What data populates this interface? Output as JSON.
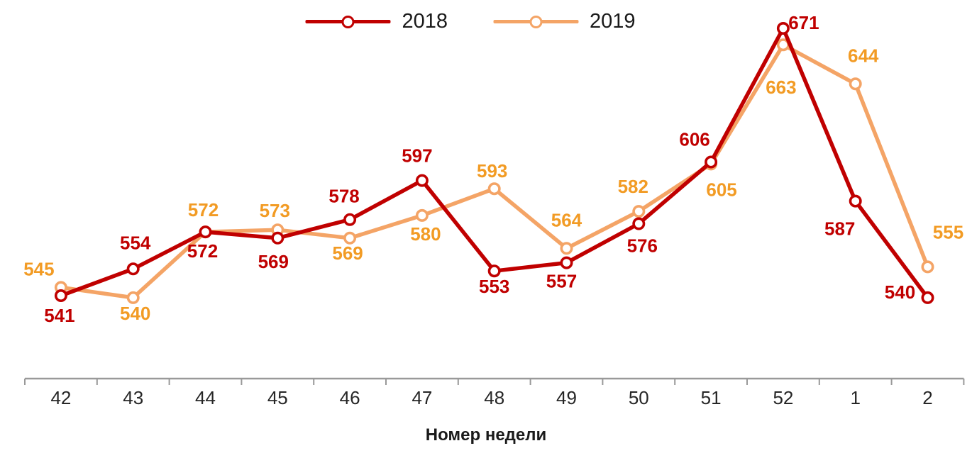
{
  "chart_data": {
    "type": "line",
    "title": "",
    "xlabel": "Номер недели",
    "categories": [
      "42",
      "43",
      "44",
      "45",
      "46",
      "47",
      "48",
      "49",
      "50",
      "51",
      "52",
      "1",
      "2"
    ],
    "series": [
      {
        "name": "2018",
        "color": "#C00000",
        "label_color": "#C00000",
        "values": [
          541,
          554,
          572,
          569,
          578,
          597,
          553,
          557,
          576,
          606,
          671,
          587,
          540
        ],
        "label_offsets": [
          [
            -2,
            28
          ],
          [
            3,
            -37
          ],
          [
            -4,
            27
          ],
          [
            -6,
            33
          ],
          [
            -8,
            -33
          ],
          [
            -7,
            -35
          ],
          [
            0,
            22
          ],
          [
            -7,
            26
          ],
          [
            5,
            31
          ],
          [
            -23,
            -32
          ],
          [
            29,
            -8
          ],
          [
            -22,
            39
          ],
          [
            -39,
            -8
          ]
        ]
      },
      {
        "name": "2019",
        "color": "#F4A466",
        "label_color": "#F29B24",
        "values": [
          545,
          540,
          572,
          573,
          569,
          580,
          593,
          564,
          582,
          605,
          663,
          644,
          555
        ],
        "label_offsets": [
          [
            -31,
            -26
          ],
          [
            3,
            22
          ],
          [
            -3,
            -31
          ],
          [
            -4,
            -27
          ],
          [
            -3,
            21
          ],
          [
            5,
            26
          ],
          [
            -3,
            -25
          ],
          [
            0,
            -40
          ],
          [
            -8,
            -35
          ],
          [
            15,
            36
          ],
          [
            -3,
            60
          ],
          [
            11,
            -40
          ],
          [
            29,
            -49
          ]
        ]
      }
    ],
    "legend": {
      "position": "top-center",
      "items": [
        "2018",
        "2019"
      ]
    },
    "axes": {
      "y_axis_visible": false,
      "grid": false,
      "x_axis_line_color": "#999999",
      "x_tick_color": "#999999",
      "x_label_color": "#262626"
    },
    "markers": {
      "shape": "circle",
      "fill": "#ffffff"
    },
    "data_labels_visible": true
  }
}
